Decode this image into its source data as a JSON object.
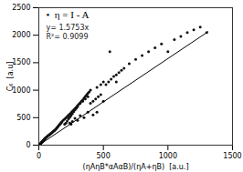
{
  "chart_data": {
    "type": "scatter",
    "x_label": "(ηAηB*αAαB)/(ηA+ηB)  [a.u.]",
    "y_label": "C₆  [a.u]",
    "xlim": [
      0,
      1500
    ],
    "ylim": [
      0,
      2500
    ],
    "xticks": [
      0,
      500,
      1000,
      1500
    ],
    "yticks": [
      0,
      500,
      1000,
      1500,
      2000,
      2500
    ],
    "annotations": [
      "•  η = I - A",
      "y= 1.5753x",
      "R²= 0.9099"
    ],
    "series": [
      {
        "type": "scatter",
        "color": "#111111",
        "marker": "circle",
        "x": [
          4,
          6,
          8,
          10,
          12,
          14,
          16,
          18,
          20,
          22,
          24,
          26,
          28,
          30,
          32,
          34,
          36,
          38,
          40,
          42,
          44,
          46,
          48,
          50,
          55,
          60,
          65,
          70,
          75,
          80,
          85,
          90,
          95,
          100,
          105,
          110,
          115,
          120,
          125,
          130,
          135,
          140,
          145,
          150,
          155,
          160,
          165,
          170,
          175,
          180,
          190,
          200,
          210,
          220,
          230,
          240,
          250,
          260,
          270,
          280,
          290,
          300,
          310,
          320,
          330,
          340,
          350,
          360,
          370,
          380,
          390,
          400,
          200,
          210,
          220,
          230,
          240,
          250,
          260,
          270,
          280,
          290,
          300,
          320,
          340,
          360,
          380,
          400,
          420,
          440,
          460,
          480,
          500,
          450,
          480,
          500,
          520,
          540,
          560,
          580,
          600,
          620,
          640,
          660,
          700,
          750,
          800,
          850,
          900,
          950,
          1000,
          1050,
          1100,
          1150,
          1200,
          1250,
          1300,
          550,
          600,
          420,
          450,
          380,
          350,
          300,
          250,
          320,
          280,
          260,
          240
        ],
        "y": [
          8,
          12,
          16,
          20,
          25,
          30,
          38,
          42,
          48,
          52,
          58,
          62,
          68,
          72,
          78,
          82,
          88,
          92,
          98,
          105,
          110,
          118,
          122,
          128,
          138,
          148,
          158,
          168,
          178,
          188,
          195,
          205,
          215,
          225,
          235,
          245,
          255,
          265,
          275,
          290,
          300,
          315,
          330,
          345,
          360,
          372,
          385,
          400,
          415,
          430,
          455,
          475,
          495,
          520,
          545,
          565,
          590,
          615,
          640,
          665,
          690,
          720,
          745,
          770,
          800,
          825,
          855,
          885,
          915,
          945,
          970,
          1000,
          380,
          400,
          440,
          480,
          510,
          540,
          570,
          610,
          640,
          670,
          700,
          760,
          800,
          840,
          880,
          760,
          800,
          840,
          880,
          920,
          800,
          1050,
          1100,
          1150,
          1100,
          1150,
          1200,
          1250,
          1280,
          1320,
          1360,
          1400,
          1480,
          1560,
          1630,
          1700,
          1770,
          1840,
          1700,
          1920,
          1980,
          2050,
          2100,
          2150,
          2050,
          1700,
          1150,
          550,
          600,
          600,
          500,
          450,
          380,
          540,
          490,
          430,
          400
        ]
      },
      {
        "type": "line",
        "color": "#000000",
        "line_style": "solid",
        "x": [
          0,
          1310
        ],
        "y": [
          0,
          2063.643
        ]
      }
    ]
  }
}
